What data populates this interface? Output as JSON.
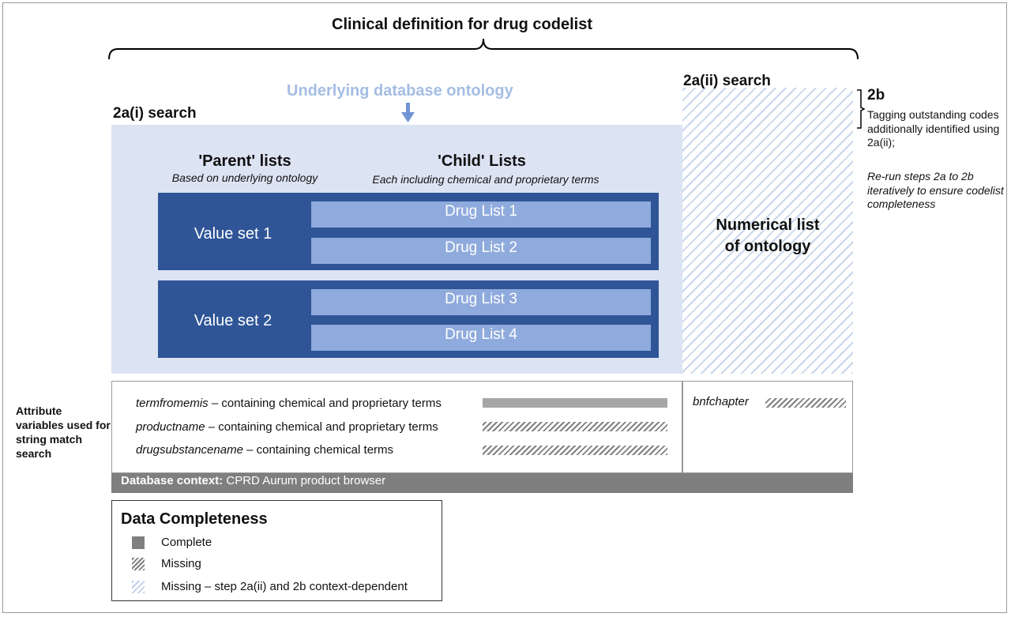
{
  "title": "Clinical definition for drug codelist",
  "search_2ai": {
    "label": "2a(i) search",
    "ontology_label": "Underlying database ontology",
    "parent_title": "'Parent' lists",
    "parent_sub": "Based on underlying ontology",
    "child_title": "'Child' Lists",
    "child_sub": "Each including chemical and proprietary terms",
    "value_sets": [
      {
        "label": "Value set 1",
        "drugs": [
          "Drug List 1",
          "Drug List 2"
        ]
      },
      {
        "label": "Value set 2",
        "drugs": [
          "Drug List 3",
          "Drug List 4"
        ]
      }
    ]
  },
  "search_2aii": {
    "label": "2a(ii) search",
    "numerical_list": "Numerical list of ontology",
    "numerical_list_line1": "Numerical list",
    "numerical_list_line2": "of ontology"
  },
  "step_2b": {
    "label": "2b",
    "note": "Tagging outstanding codes additionally identified using 2a(ii);",
    "note_italic": "Re-run steps 2a to 2b iteratively to ensure codelist completeness"
  },
  "attributes": {
    "side_label": "Attribute variables used for string match search",
    "rows": [
      {
        "var": "termfromemis",
        "desc": " – containing chemical and proprietary terms",
        "status": "complete"
      },
      {
        "var": "productname",
        "desc": " – containing chemical and proprietary terms",
        "status": "missing"
      },
      {
        "var": "drugsubstancename",
        "desc": " – containing chemical terms",
        "status": "missing"
      }
    ],
    "right_var": "bnfchapter",
    "right_status": "missing"
  },
  "database_context": {
    "label": "Database context:",
    "value": " CPRD Aurum product browser"
  },
  "legend": {
    "title": "Data Completeness",
    "items": [
      {
        "label": "Complete",
        "swatch": "complete"
      },
      {
        "label": "Missing",
        "swatch": "missing"
      },
      {
        "label": "Missing – step 2a(ii) and 2b context-dependent",
        "swatch": "context"
      }
    ]
  },
  "colors": {
    "dark_blue": "#2f5597",
    "mid_blue": "#8faadc",
    "light_blue": "#dce3f3",
    "ontology_text": "#a4bde3",
    "grey": "#7f7f7f"
  }
}
